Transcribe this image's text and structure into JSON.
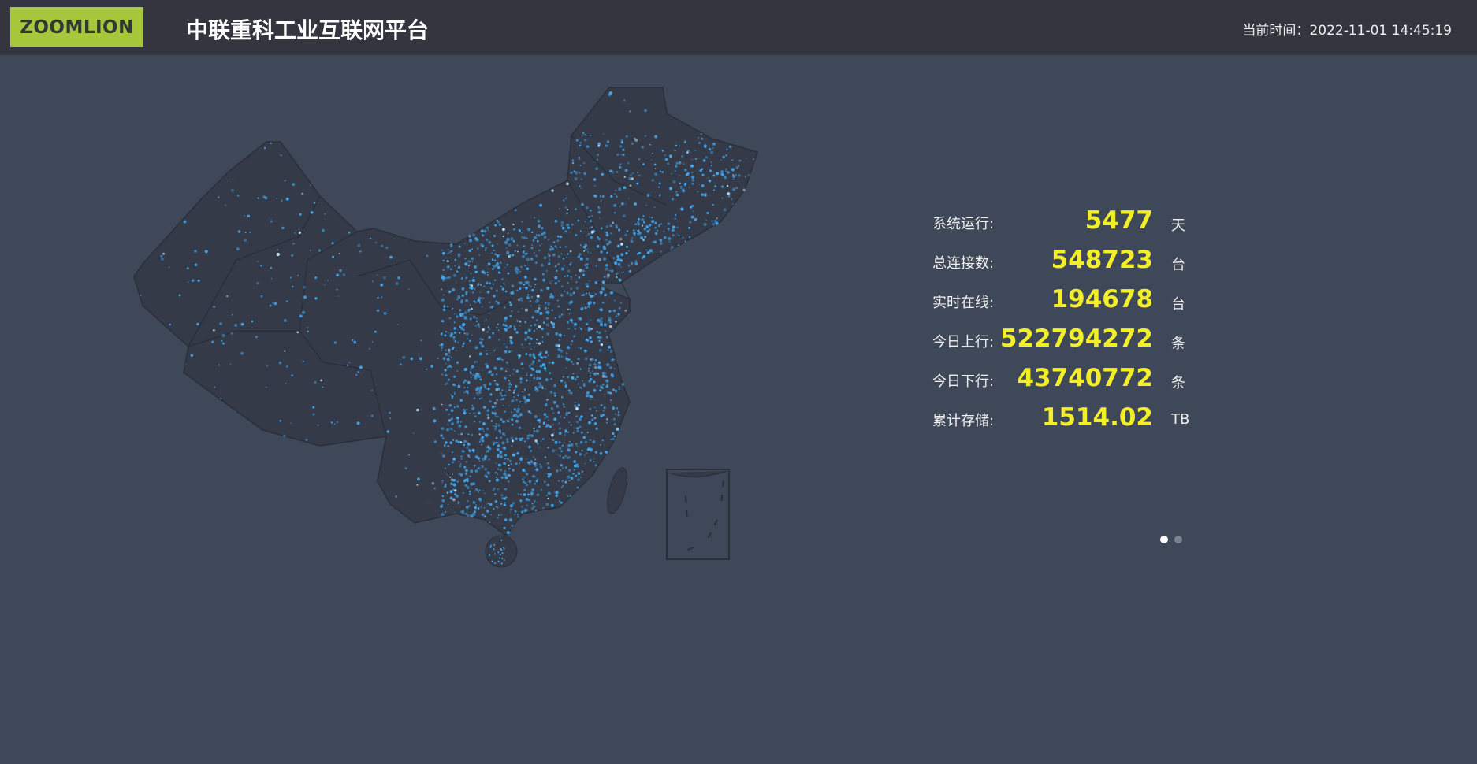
{
  "header": {
    "logo_text": "ZOOMLION",
    "title": "中联重科工业互联网平台",
    "clock_label": "当前时间：",
    "clock_value": "2022-11-01 14:45:19"
  },
  "stats": [
    {
      "label": "系统运行:",
      "value": "5477",
      "unit": "天"
    },
    {
      "label": "总连接数:",
      "value": "548723",
      "unit": "台"
    },
    {
      "label": "实时在线:",
      "value": "194678",
      "unit": "台"
    },
    {
      "label": "今日上行:",
      "value": "522794272",
      "unit": "条"
    },
    {
      "label": "今日下行:",
      "value": "43740772",
      "unit": "条"
    },
    {
      "label": "累计存储:",
      "value": "1514.02",
      "unit": "TB"
    }
  ],
  "carousel": {
    "pages": 2,
    "active": 1
  },
  "colors": {
    "header_bg": "#34353f",
    "page_bg": "#3f4858",
    "logo_bg": "#a6c73c",
    "value": "#f2ee28",
    "map_fill": "#343a47",
    "device_light": "#3fa9f5"
  }
}
